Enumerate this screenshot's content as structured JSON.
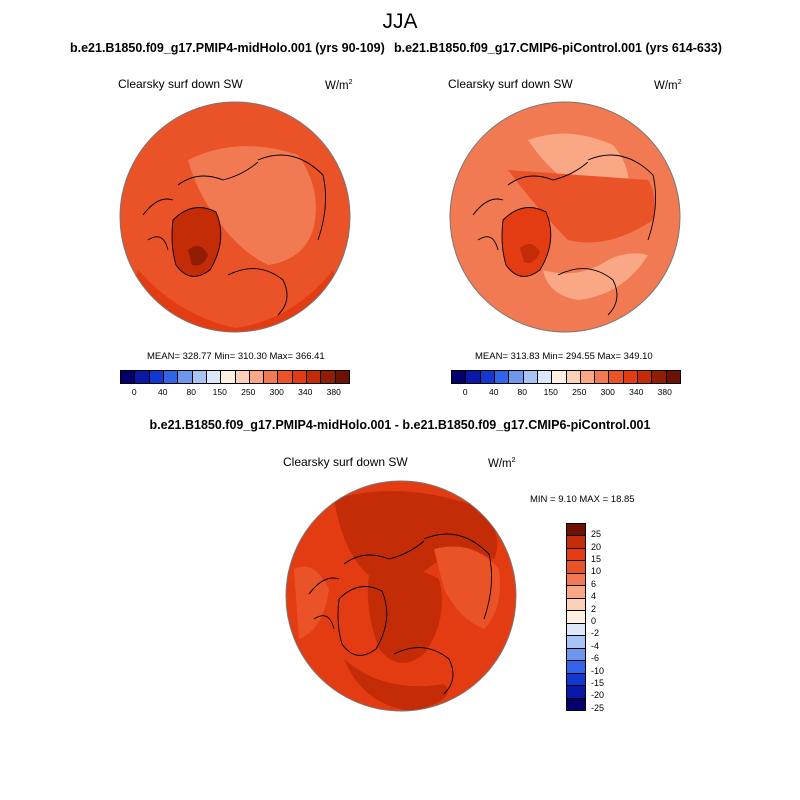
{
  "figure": {
    "season": "JJA",
    "difference_title": "b.e21.B1850.f09_g17.PMIP4-midHolo.001 - b.e21.B1850.f09_g17.CMIP6-piControl.001"
  },
  "panels": [
    {
      "case": "b.e21.B1850.f09_g17.PMIP4-midHolo.001 (yrs 90-109)",
      "variable": "Clearsky surf down SW",
      "unit": "W/m",
      "unit_exp": "2",
      "stats": "MEAN= 328.77  Min= 310.30  Max= 366.41"
    },
    {
      "case": "b.e21.B1850.f09_g17.CMIP6-piControl.001 (yrs 614-633)",
      "variable": "Clearsky surf down SW",
      "unit": "W/m",
      "unit_exp": "2",
      "stats": "MEAN= 313.83  Min= 294.55  Max= 349.10"
    },
    {
      "variable": "Clearsky surf down SW",
      "unit": "W/m",
      "unit_exp": "2",
      "stats": "MIN =   9.10 MAX =  18.85"
    }
  ],
  "colorbars": {
    "absolute": {
      "colors": [
        "#03006d",
        "#0a18a8",
        "#1437d0",
        "#3164e6",
        "#6e98ee",
        "#a8c4f4",
        "#dce8fa",
        "#fff0e2",
        "#fdd0b8",
        "#f9a784",
        "#f27a52",
        "#ea5228",
        "#e33c12",
        "#c42b07",
        "#911d04",
        "#6c1103"
      ],
      "labels": [
        "0",
        "40",
        "80",
        "150",
        "250",
        "300",
        "340",
        "380"
      ]
    },
    "difference": {
      "colors": [
        "#6c1103",
        "#c42b07",
        "#e33c12",
        "#ea5228",
        "#f27a52",
        "#f9a784",
        "#fdd0b8",
        "#fff0e2",
        "#dce8fa",
        "#a8c4f4",
        "#6e98ee",
        "#3164e6",
        "#1437d0",
        "#0a18a8",
        "#03006d"
      ],
      "labels": [
        "25",
        "20",
        "15",
        "10",
        "6",
        "4",
        "2",
        "0",
        "-2",
        "-4",
        "-6",
        "-10",
        "-15",
        "-20",
        "-25"
      ]
    }
  }
}
